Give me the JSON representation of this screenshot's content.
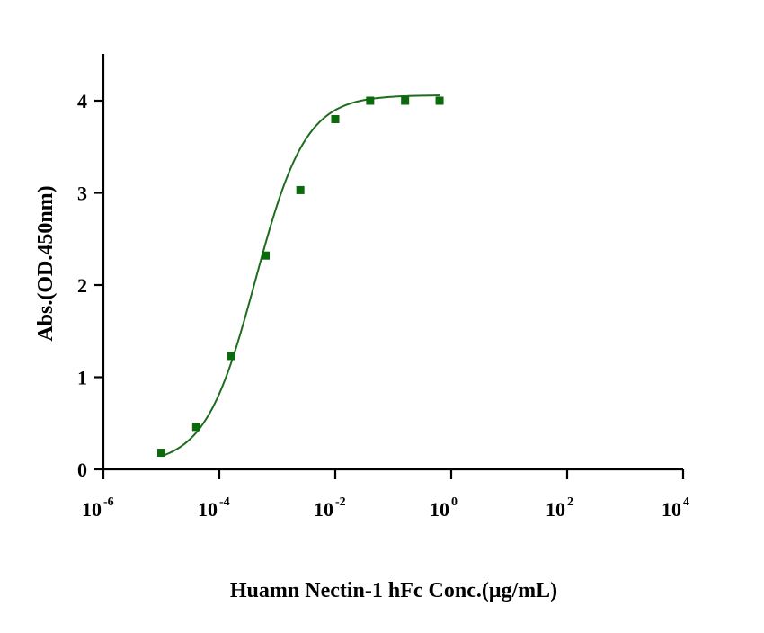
{
  "chart_data": {
    "type": "scatter",
    "xlabel": "Huamn Nectin-1 hFc Conc.(μg/mL)",
    "ylabel": "Abs.(OD.450nm)",
    "x_scale": "log",
    "xlim": [
      1e-06,
      10000
    ],
    "ylim": [
      0,
      4.5
    ],
    "x_ticks": [
      {
        "base": "10",
        "exp": "-6",
        "value": 1e-06
      },
      {
        "base": "10",
        "exp": "-4",
        "value": 0.0001
      },
      {
        "base": "10",
        "exp": "-2",
        "value": 0.01
      },
      {
        "base": "10",
        "exp": "0",
        "value": 1
      },
      {
        "base": "10",
        "exp": "2",
        "value": 100
      },
      {
        "base": "10",
        "exp": "4",
        "value": 10000
      }
    ],
    "y_ticks": [
      "0",
      "1",
      "2",
      "3",
      "4"
    ],
    "grid": false,
    "color": "#1f6b1f",
    "marker_color": "#0b6a0b",
    "series": [
      {
        "x": [
          1e-05,
          4e-05,
          0.00016,
          0.00063,
          0.0025,
          0.01,
          0.04,
          0.16,
          0.63
        ],
        "y": [
          0.18,
          0.46,
          1.23,
          2.32,
          3.03,
          3.8,
          4.0,
          4.0,
          4.0
        ]
      }
    ],
    "fit_curve": {
      "model": "4PL",
      "bottom": 0.05,
      "top": 4.06,
      "ec50": 0.00042,
      "hill": 1.0,
      "x_range": [
        1e-05,
        0.63
      ]
    }
  }
}
